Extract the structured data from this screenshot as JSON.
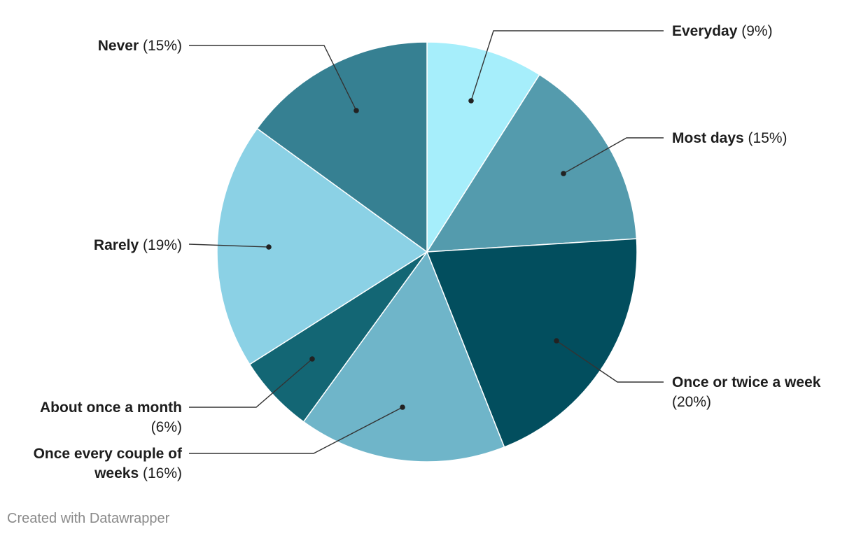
{
  "chart_data": {
    "type": "pie",
    "slices": [
      {
        "label": "Everyday",
        "pct_text": "(9%)",
        "value": 9,
        "color": "#a6eefb"
      },
      {
        "label": "Most days",
        "pct_text": "(15%)",
        "value": 15,
        "color": "#549bad"
      },
      {
        "label": "Once or twice a week",
        "pct_text": "(20%)",
        "value": 20,
        "color": "#024e5e"
      },
      {
        "label": "Once every couple of weeks",
        "pct_text": "(16%)",
        "value": 16,
        "color": "#6fb5c9"
      },
      {
        "label": "About once a month",
        "pct_text": "(6%)",
        "value": 6,
        "color": "#136674"
      },
      {
        "label": "Rarely",
        "pct_text": "(19%)",
        "value": 19,
        "color": "#8bd1e5"
      },
      {
        "label": "Never",
        "pct_text": "(15%)",
        "value": 15,
        "color": "#368092"
      }
    ]
  },
  "footer": {
    "credit": "Created with Datawrapper"
  }
}
